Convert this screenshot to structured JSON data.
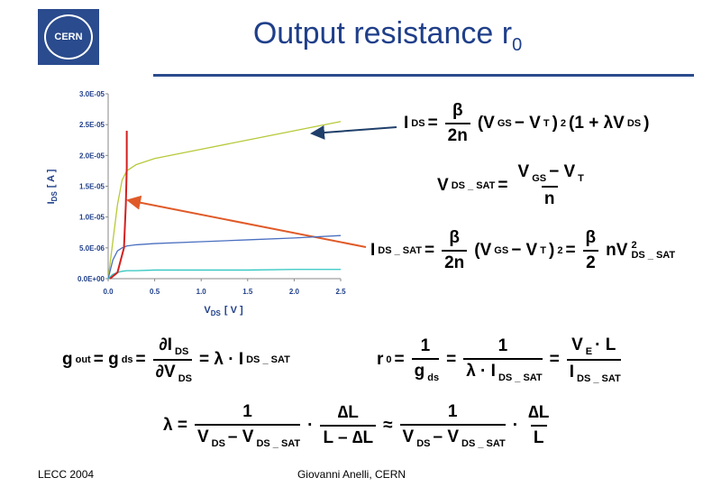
{
  "logo": "CERN",
  "header": {
    "title": "Output resistance r",
    "title_sub": "0"
  },
  "chart_data": {
    "type": "line",
    "x_label": {
      "text": "V",
      "sub": "DS",
      "unit": "[ V ]"
    },
    "y_label": {
      "text": "I",
      "sub": "DS",
      "unit": "[ A ]"
    },
    "x": [
      0,
      0.05,
      0.1,
      0.15,
      0.2,
      0.3,
      0.5,
      1.0,
      1.5,
      2.0,
      2.5
    ],
    "series": [
      {
        "color": "#b8c93a",
        "values": [
          0,
          6e-06,
          1.2e-05,
          1.6e-05,
          1.75e-05,
          1.85e-05,
          1.95e-05,
          2.1e-05,
          2.25e-05,
          2.4e-05,
          2.55e-05
        ]
      },
      {
        "color": "#4a6fc0",
        "values": [
          0,
          3e-06,
          4.5e-06,
          5e-06,
          5.3e-06,
          5.5e-06,
          5.7e-06,
          6e-06,
          6.3e-06,
          6.6e-06,
          7e-06
        ]
      },
      {
        "color": "#2ec6c0",
        "values": [
          0,
          7e-07,
          1e-06,
          1.2e-06,
          1.3e-06,
          1.3e-06,
          1.4e-06,
          1.4e-06,
          1.4e-06,
          1.5e-06,
          1.5e-06
        ]
      },
      {
        "color": "#d42020",
        "x": [
          0.02,
          0.1,
          0.17,
          0.19,
          0.2,
          0.2
        ],
        "values": [
          0,
          1e-06,
          5e-06,
          1.2e-05,
          1.8e-05,
          2.4e-05
        ]
      }
    ],
    "xlim": [
      0,
      2.5
    ],
    "xticks": [
      {
        "value": 0,
        "label": "0.0"
      },
      0.5,
      {
        "value": 1,
        "label": "1.0"
      },
      1.5,
      {
        "value": 2,
        "label": "2.0"
      },
      2.5
    ],
    "ylim": [
      0,
      3e-05
    ],
    "yticks": [
      {
        "value": 0,
        "label": "0.0E+00"
      },
      {
        "value": 5e-06,
        "label": "5.0E-06"
      },
      {
        "value": 1e-05,
        "label": "1.0E-05"
      },
      {
        "value": 1.5e-05,
        "label": "1.5E-05"
      },
      {
        "value": 2e-05,
        "label": "2.0E-05"
      },
      {
        "value": 2.5e-05,
        "label": "2.5E-05"
      },
      {
        "value": 3e-05,
        "label": "3.0E-05"
      }
    ]
  },
  "equations": [
    {
      "tokens": [
        "I",
        {
          "sub": "DS"
        },
        "=",
        {
          "num": [
            "β"
          ],
          "den": [
            "2n"
          ]
        },
        "(V",
        {
          "sub": "GS"
        },
        "− V",
        {
          "sub": "T"
        },
        ")",
        {
          "sup": "2"
        },
        "(1 + λV",
        {
          "sub": "DS"
        },
        ")"
      ]
    },
    {
      "tokens": [
        "V",
        {
          "sub": "DS _ SAT"
        },
        "=",
        {
          "num": [
            "V",
            {
              "sub": "GS"
            },
            "− V",
            {
              "sub": "T"
            }
          ],
          "den": [
            "n"
          ]
        }
      ]
    },
    {
      "tokens": [
        "I",
        {
          "sub": "DS _ SAT"
        },
        "=",
        {
          "num": [
            "β"
          ],
          "den": [
            "2n"
          ]
        },
        "(V",
        {
          "sub": "GS"
        },
        "− V",
        {
          "sub": "T"
        },
        ")",
        {
          "sup": "2"
        },
        "=",
        {
          "num": [
            "β"
          ],
          "den": [
            "2"
          ]
        },
        "nV",
        {
          "sub": "DS _ SAT",
          "sup": "2"
        }
      ]
    },
    {
      "tokens": [
        "g",
        {
          "sub": "out"
        },
        "= g",
        {
          "sub": "ds"
        },
        "=",
        {
          "num": [
            "∂I",
            {
              "sub": "DS"
            }
          ],
          "den": [
            "∂V",
            {
              "sub": "DS"
            }
          ]
        },
        "= λ · I",
        {
          "sub": "DS _ SAT"
        }
      ]
    },
    {
      "tokens": [
        "r",
        {
          "sub": "0"
        },
        "=",
        {
          "num": [
            "1"
          ],
          "den": [
            "g",
            {
              "sub": "ds"
            }
          ]
        },
        "=",
        {
          "num": [
            "1"
          ],
          "den": [
            "λ · I",
            {
              "sub": "DS _ SAT"
            }
          ]
        },
        "=",
        {
          "num": [
            "V",
            {
              "sub": "E"
            },
            "· L"
          ],
          "den": [
            "I",
            {
              "sub": "DS _ SAT"
            }
          ]
        }
      ]
    },
    {
      "tokens": [
        "λ =",
        {
          "num": [
            "1"
          ],
          "den": [
            "V",
            {
              "sub": "DS"
            },
            "– V",
            {
              "sub": "DS _ SAT"
            }
          ]
        },
        "·",
        {
          "num": [
            "∆L"
          ],
          "den": [
            "L – ∆L"
          ]
        },
        "≈",
        {
          "num": [
            "1"
          ],
          "den": [
            "V",
            {
              "sub": "DS"
            },
            "– V",
            {
              "sub": "DS _ SAT"
            }
          ]
        },
        "·",
        {
          "num": [
            "∆L"
          ],
          "den": [
            "L"
          ]
        }
      ]
    }
  ],
  "footer": {
    "left": "LECC 2004",
    "center": "Giovanni Anelli, CERN"
  }
}
